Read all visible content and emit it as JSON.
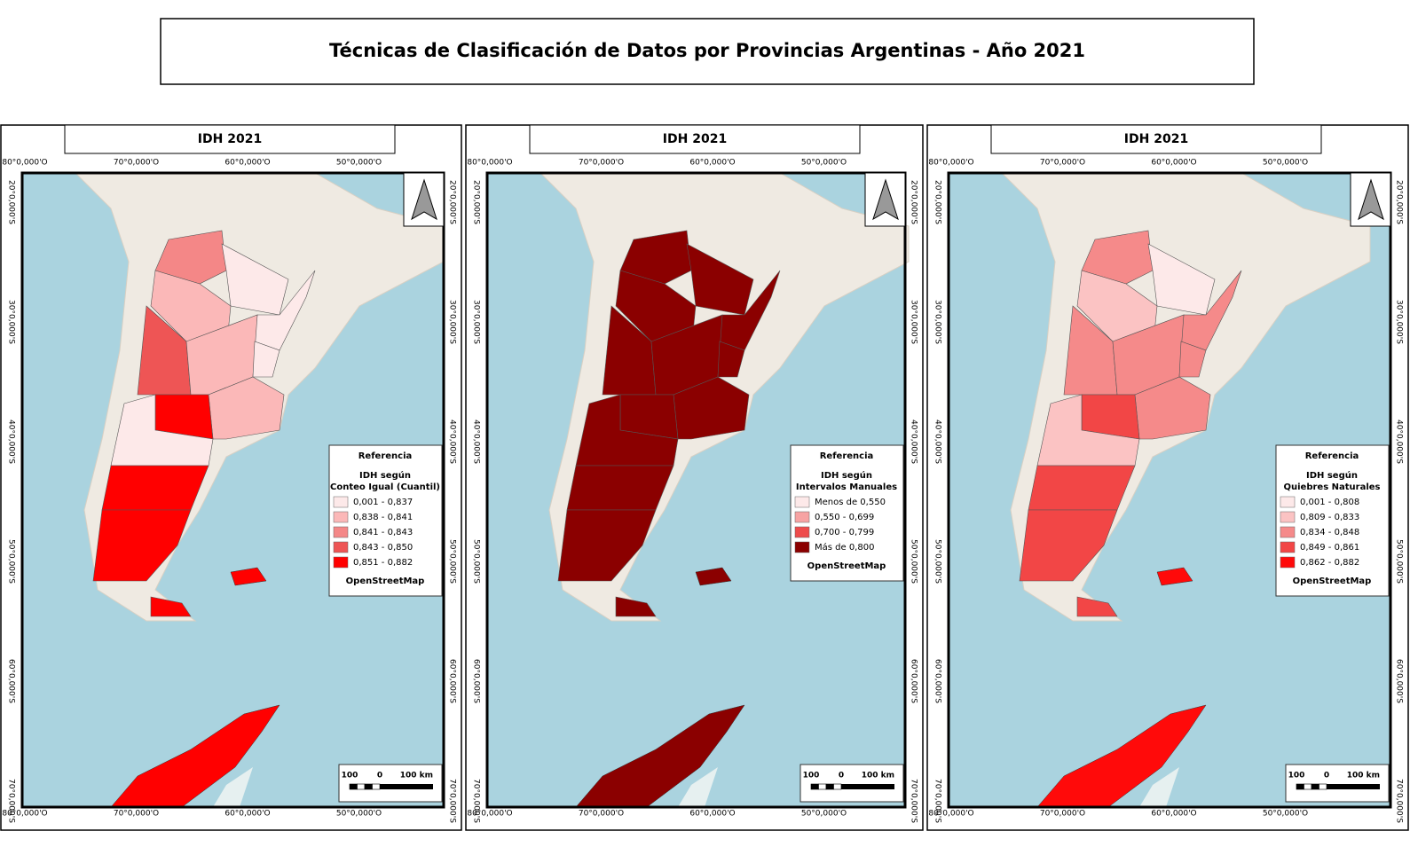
{
  "title": "Técnicas de Clasificación de Datos por Provincias Argentinas - Año 2021",
  "coordinates": {
    "longitudes": [
      "80°0,000'O",
      "70°0,000'O",
      "60°0,000'O",
      "50°0,000'O"
    ],
    "latitudes": [
      "20°0,000'S",
      "30°0,000'S",
      "40°0,000'S",
      "50°0,000'S",
      "60°0,000'S",
      "70°0,000'S"
    ]
  },
  "panels": [
    {
      "header": "IDH 2021",
      "legend": {
        "title": "Referencia",
        "subtitle": [
          "IDH según",
          "Conteo Igual (Cuantil)"
        ],
        "classes": [
          {
            "label": "0,001 - 0,837",
            "color": "#fde9e9"
          },
          {
            "label": "0,838 - 0,841",
            "color": "#fbb8b8"
          },
          {
            "label": "0,841 - 0,843",
            "color": "#f48787"
          },
          {
            "label": "0,843 - 0,850",
            "color": "#ee5555"
          },
          {
            "label": "0,851 - 0,882",
            "color": "#ff0000"
          }
        ],
        "source": "OpenStreetMap"
      },
      "scale": [
        "100",
        "0",
        "100 km"
      ]
    },
    {
      "header": "IDH 2021",
      "legend": {
        "title": "Referencia",
        "subtitle": [
          "IDH según",
          "Intervalos Manuales"
        ],
        "classes": [
          {
            "label": "Menos de 0,550",
            "color": "#fde9e9"
          },
          {
            "label": "0,550 - 0,699",
            "color": "#f7a3a3"
          },
          {
            "label": "0,700 - 0,799",
            "color": "#ee4b4b"
          },
          {
            "label": "Más de 0,800",
            "color": "#8b0000"
          }
        ],
        "source": "OpenStreetMap"
      },
      "scale": [
        "100",
        "0",
        "100 km"
      ]
    },
    {
      "header": "IDH 2021",
      "legend": {
        "title": "Referencia",
        "subtitle": [
          "IDH según",
          "Quiebres Naturales"
        ],
        "classes": [
          {
            "label": "0,001 - 0,808",
            "color": "#fde9e9"
          },
          {
            "label": "0,809 - 0,833",
            "color": "#fbc3c3"
          },
          {
            "label": "0,834 - 0,848",
            "color": "#f58a8a"
          },
          {
            "label": "0,849 - 0,861",
            "color": "#f24646"
          },
          {
            "label": "0,862 - 0,882",
            "color": "#ff0a0a"
          }
        ],
        "source": "OpenStreetMap"
      },
      "scale": [
        "100",
        "0",
        "100 km"
      ]
    }
  ]
}
